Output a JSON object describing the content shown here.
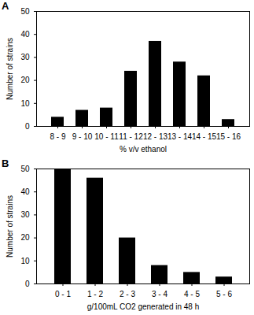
{
  "chart_data": [
    {
      "type": "bar",
      "title": "A",
      "categories": [
        "8 - 9",
        "9 - 10",
        "10 - 11",
        "11 - 12",
        "12 - 13",
        "13 - 14",
        "14 - 15",
        "15 - 16"
      ],
      "values": [
        4,
        7,
        8,
        24,
        37,
        28,
        22,
        3
      ],
      "color": "#000000",
      "x_label": "% v/v ethanol",
      "y_label": "Number of strains",
      "ylim": [
        0,
        50
      ],
      "yticks": [
        0,
        10,
        20,
        30,
        40,
        50
      ],
      "grid": false
    },
    {
      "type": "bar",
      "title": "B",
      "categories": [
        "0 - 1",
        "1 - 2",
        "2 - 3",
        "3 - 4",
        "4 - 5",
        "5 - 6"
      ],
      "values": [
        50,
        46,
        20,
        8,
        5,
        3
      ],
      "color": "#000000",
      "x_label": "g/100mL CO2 generated in 48 h",
      "y_label": "Number of strains",
      "ylim": [
        0,
        50
      ],
      "yticks": [
        0,
        10,
        20,
        30,
        40,
        50
      ],
      "grid": false
    }
  ]
}
